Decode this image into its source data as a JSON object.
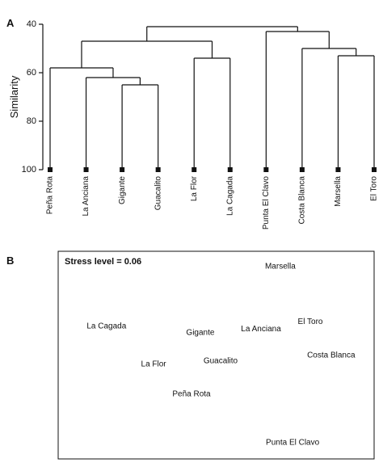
{
  "chart_data": [
    {
      "type": "dendrogram",
      "panel": "A",
      "ylabel": "Similarity",
      "ylim": [
        100,
        40
      ],
      "yticks": [
        40,
        60,
        80,
        100
      ],
      "tree": {
        "height": 41,
        "children": [
          {
            "height": 47,
            "children": [
              {
                "height": 58,
                "children": [
                  {
                    "label": "Peña Rota"
                  },
                  {
                    "height": 62,
                    "children": [
                      {
                        "label": "La Anciana"
                      },
                      {
                        "height": 65,
                        "children": [
                          {
                            "label": "Gigante"
                          },
                          {
                            "label": "Guacalito"
                          }
                        ]
                      }
                    ]
                  }
                ]
              },
              {
                "height": 54,
                "children": [
                  {
                    "label": "La Flor"
                  },
                  {
                    "label": "La Cagada"
                  }
                ]
              }
            ]
          },
          {
            "height": 43,
            "children": [
              {
                "label": "Punta El Clavo"
              },
              {
                "height": 50,
                "children": [
                  {
                    "label": "Costa Blanca"
                  },
                  {
                    "height": 53,
                    "children": [
                      {
                        "label": "Marsella"
                      },
                      {
                        "label": "El Toro"
                      }
                    ]
                  }
                ]
              }
            ]
          }
        ]
      }
    },
    {
      "type": "scatter",
      "panel": "B",
      "annotation": "Stress level = 0.06",
      "xlim": [
        0,
        100
      ],
      "ylim": [
        0,
        100
      ],
      "points": [
        {
          "name": "Marsella",
          "x": 70.3,
          "y": 92.6
        },
        {
          "name": "La Cagada",
          "x": 15.3,
          "y": 63.8
        },
        {
          "name": "Gigante",
          "x": 45.0,
          "y": 60.7
        },
        {
          "name": "La Anciana",
          "x": 64.2,
          "y": 62.6
        },
        {
          "name": "El Toro",
          "x": 79.8,
          "y": 66.1
        },
        {
          "name": "Costa Blanca",
          "x": 86.4,
          "y": 49.8
        },
        {
          "name": "La Flor",
          "x": 30.2,
          "y": 45.5
        },
        {
          "name": "Guacalito",
          "x": 51.4,
          "y": 47.1
        },
        {
          "name": "Peña Rota",
          "x": 42.2,
          "y": 31.1
        },
        {
          "name": "Punta El Clavo",
          "x": 74.2,
          "y": 7.8
        }
      ]
    }
  ]
}
